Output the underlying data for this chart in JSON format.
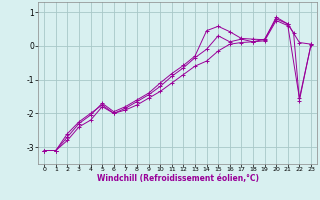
{
  "xlabel": "Windchill (Refroidissement éolien,°C)",
  "ylabel": "",
  "background_color": "#d8f0f0",
  "grid_color": "#a8c8c8",
  "line_color": "#990099",
  "xlim": [
    -0.5,
    23.5
  ],
  "ylim": [
    -3.5,
    1.3
  ],
  "yticks": [
    1,
    0,
    -1,
    -2,
    -3
  ],
  "xticks": [
    0,
    1,
    2,
    3,
    4,
    5,
    6,
    7,
    8,
    9,
    10,
    11,
    12,
    13,
    14,
    15,
    16,
    17,
    18,
    19,
    20,
    21,
    22,
    23
  ],
  "series1_x": [
    0,
    1,
    2,
    3,
    4,
    5,
    6,
    7,
    8,
    9,
    10,
    11,
    12,
    13,
    14,
    15,
    16,
    17,
    18,
    19,
    20,
    21,
    22,
    23
  ],
  "series1_y": [
    -3.1,
    -3.1,
    -2.8,
    -2.4,
    -2.2,
    -1.8,
    -2.0,
    -1.9,
    -1.75,
    -1.55,
    -1.35,
    -1.1,
    -0.85,
    -0.6,
    -0.45,
    -0.15,
    0.05,
    0.1,
    0.12,
    0.2,
    0.8,
    0.65,
    0.1,
    0.05
  ],
  "series2_x": [
    0,
    1,
    2,
    3,
    4,
    5,
    6,
    7,
    8,
    9,
    10,
    11,
    12,
    13,
    14,
    15,
    16,
    17,
    18,
    19,
    20,
    21,
    21.5,
    22,
    23
  ],
  "series2_y": [
    -3.1,
    -3.1,
    -2.7,
    -2.3,
    -2.05,
    -1.7,
    -1.95,
    -1.8,
    -1.6,
    -1.4,
    -1.1,
    -0.82,
    -0.58,
    -0.3,
    0.45,
    0.58,
    0.42,
    0.22,
    0.2,
    0.18,
    0.85,
    0.65,
    0.38,
    -1.62,
    0.05
  ],
  "series3_x": [
    0,
    1,
    2,
    3,
    4,
    5,
    6,
    7,
    8,
    9,
    10,
    11,
    12,
    13,
    14,
    15,
    16,
    17,
    18,
    19,
    20,
    21,
    22,
    23
  ],
  "series3_y": [
    -3.1,
    -3.1,
    -2.6,
    -2.25,
    -2.0,
    -1.75,
    -2.0,
    -1.85,
    -1.65,
    -1.45,
    -1.2,
    -0.9,
    -0.65,
    -0.35,
    -0.1,
    0.3,
    0.12,
    0.2,
    0.12,
    0.15,
    0.75,
    0.6,
    -1.55,
    0.02
  ]
}
